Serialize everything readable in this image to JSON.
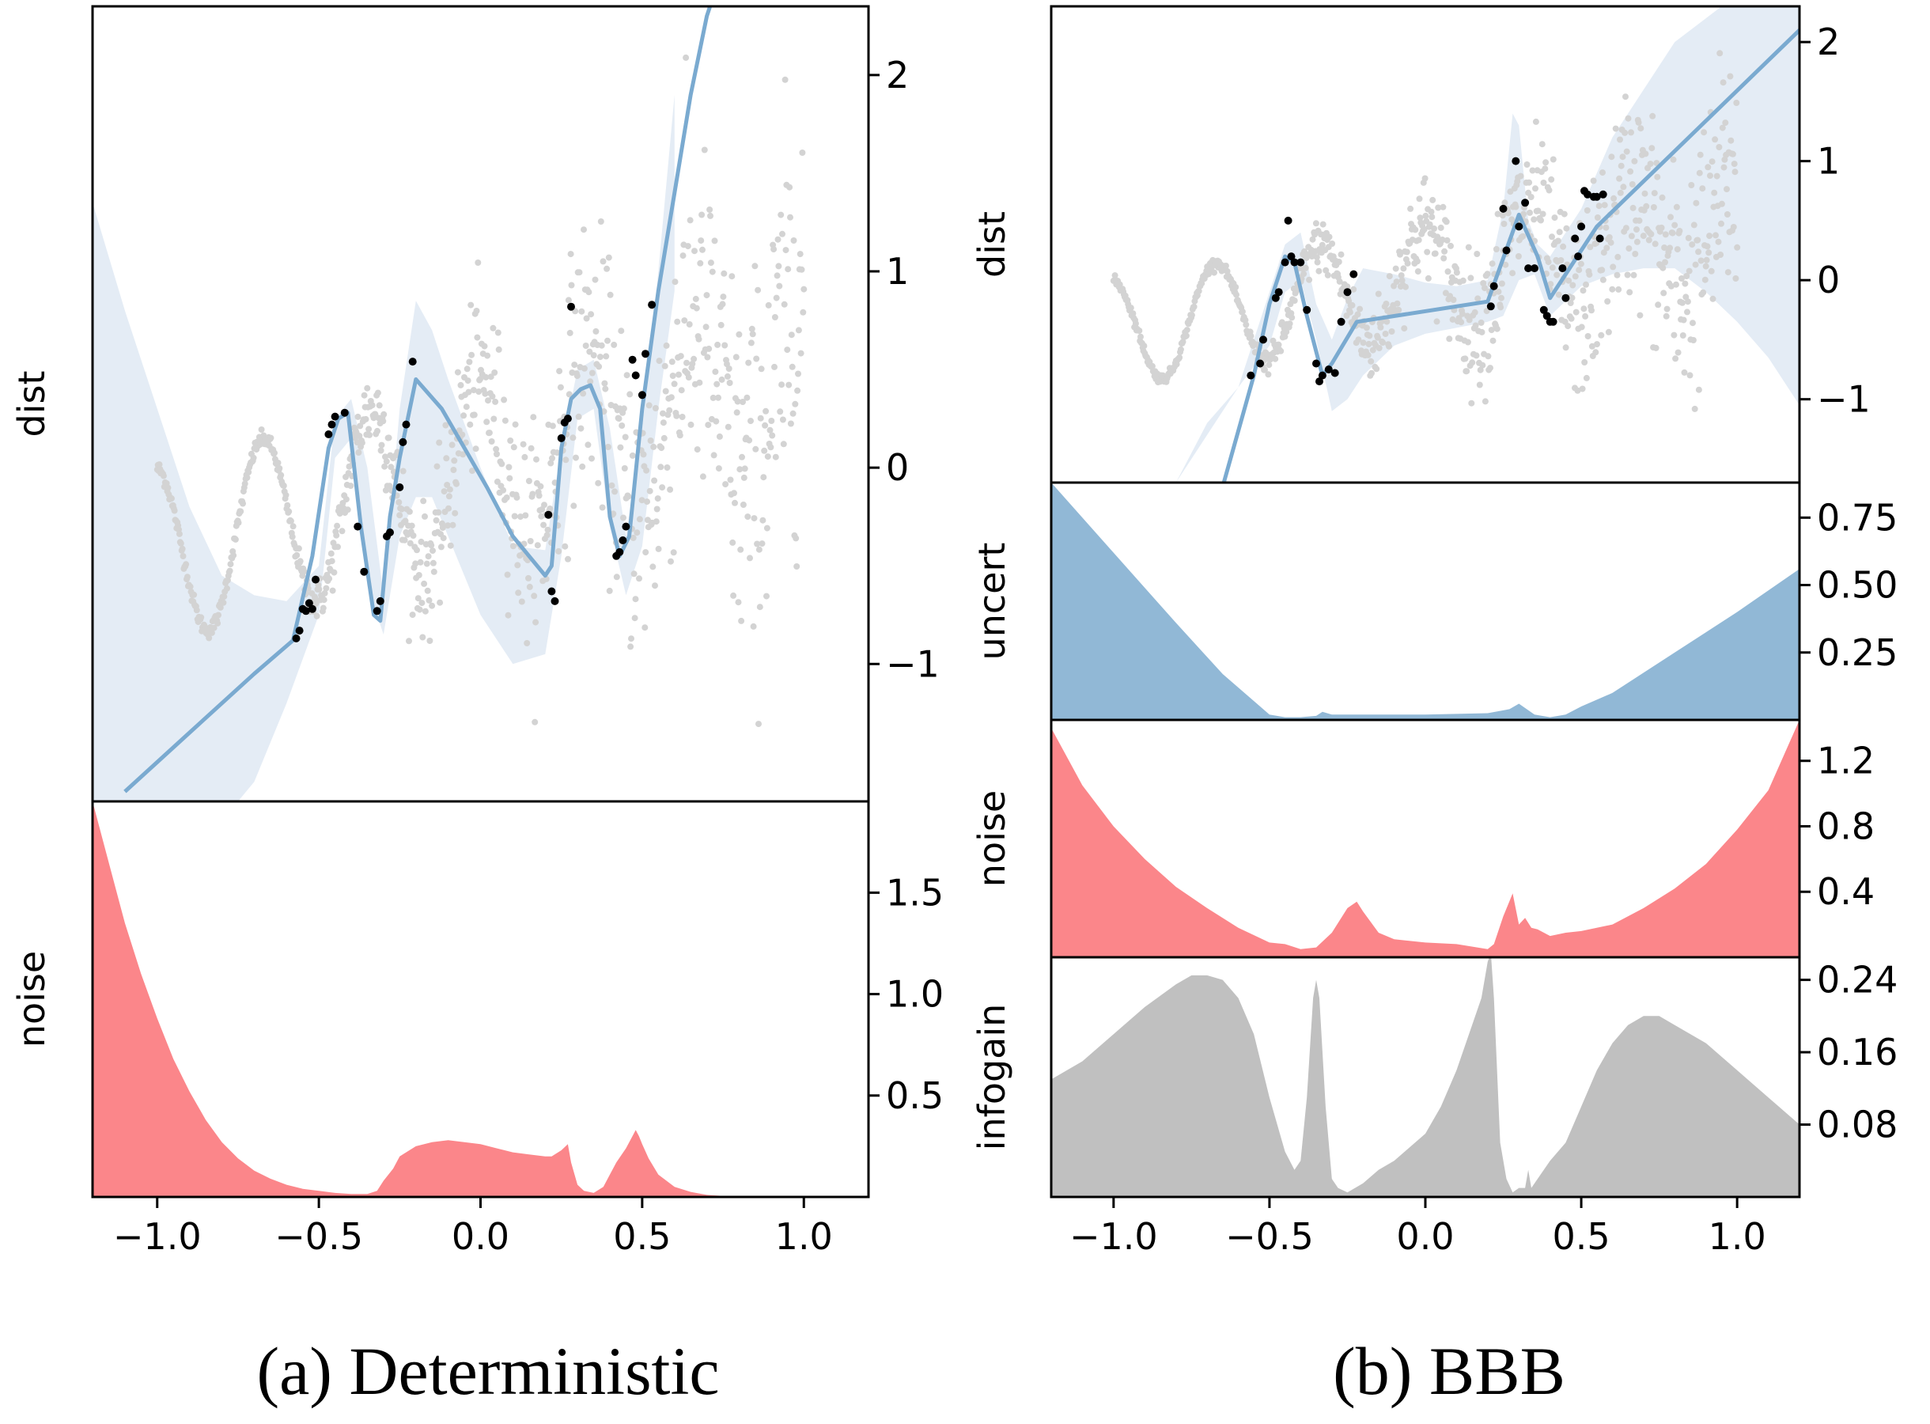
{
  "chart_data": [
    {
      "type": "line",
      "panel": "deterministic-dist",
      "ylabel": "dist",
      "xlim": [
        -1.2,
        1.2
      ],
      "ylim": [
        -1.7,
        2.35
      ],
      "yticks": [
        -1,
        0,
        1,
        2
      ],
      "ytick_labels": [
        "−1",
        "0",
        "1",
        "2"
      ],
      "colors": {
        "line": "#7aaad0",
        "band": "#e4ecf5",
        "train": "#000000",
        "context": "#d3d3d3"
      },
      "mean_line": {
        "x": [
          -1.1,
          -0.9,
          -0.7,
          -0.58,
          -0.52,
          -0.47,
          -0.44,
          -0.41,
          -0.37,
          -0.33,
          -0.31,
          -0.28,
          -0.25,
          -0.2,
          -0.12,
          -0.05,
          0.02,
          0.1,
          0.15,
          0.2,
          0.22,
          0.25,
          0.28,
          0.31,
          0.34,
          0.37,
          0.4,
          0.43,
          0.46,
          0.5,
          0.55,
          0.6,
          0.65,
          0.7,
          0.8
        ],
        "y": [
          -1.65,
          -1.35,
          -1.05,
          -0.88,
          -0.45,
          0.1,
          0.25,
          0.28,
          -0.3,
          -0.75,
          -0.78,
          -0.25,
          0.05,
          0.45,
          0.3,
          0.1,
          -0.1,
          -0.35,
          -0.45,
          -0.55,
          -0.5,
          0.1,
          0.35,
          0.4,
          0.42,
          0.3,
          -0.25,
          -0.45,
          -0.35,
          0.3,
          0.9,
          1.4,
          1.9,
          2.3,
          2.8
        ]
      },
      "band_upper": {
        "x": [
          -1.2,
          -1.1,
          -1.0,
          -0.9,
          -0.8,
          -0.7,
          -0.6,
          -0.5,
          -0.45,
          -0.4,
          -0.35,
          -0.3,
          -0.25,
          -0.2,
          -0.15,
          -0.1,
          0.0,
          0.1,
          0.2,
          0.25,
          0.3,
          0.35,
          0.4,
          0.45,
          0.5,
          0.55,
          0.6
        ],
        "y": [
          1.35,
          0.8,
          0.3,
          -0.2,
          -0.55,
          -0.65,
          -0.68,
          -0.5,
          0.25,
          0.35,
          0.0,
          -0.65,
          0.3,
          0.85,
          0.7,
          0.45,
          0.0,
          -0.4,
          -0.42,
          0.1,
          0.5,
          0.55,
          0.2,
          -0.35,
          0.2,
          1.0,
          1.9
        ]
      },
      "band_lower": {
        "x": [
          -1.2,
          -1.1,
          -1.0,
          -0.9,
          -0.8,
          -0.75,
          -0.7,
          -0.6,
          -0.5,
          -0.45,
          -0.4,
          -0.35,
          -0.3,
          -0.25,
          -0.2,
          -0.15,
          -0.1,
          0.0,
          0.1,
          0.2,
          0.25,
          0.3,
          0.35,
          0.4,
          0.45,
          0.5,
          0.55,
          0.6
        ],
        "y": [
          -1.7,
          -1.7,
          -1.7,
          -1.7,
          -1.7,
          -1.7,
          -1.6,
          -1.2,
          -0.75,
          0.05,
          0.15,
          -0.6,
          -0.85,
          -0.35,
          -0.15,
          -0.15,
          -0.35,
          -0.75,
          -1.0,
          -0.95,
          -0.45,
          0.25,
          0.3,
          -0.3,
          -0.65,
          -0.4,
          0.3,
          0.9
        ]
      },
      "train_points": {
        "x": [
          -0.57,
          -0.56,
          -0.55,
          -0.54,
          -0.53,
          -0.52,
          -0.51,
          -0.47,
          -0.46,
          -0.45,
          -0.42,
          -0.38,
          -0.36,
          -0.32,
          -0.31,
          -0.29,
          -0.28,
          -0.25,
          -0.24,
          -0.23,
          -0.21,
          0.21,
          0.22,
          0.23,
          0.25,
          0.26,
          0.27,
          0.28,
          0.42,
          0.43,
          0.44,
          0.45,
          0.47,
          0.48,
          0.5,
          0.51,
          0.53
        ],
        "y": [
          -0.87,
          -0.83,
          -0.72,
          -0.73,
          -0.69,
          -0.72,
          -0.57,
          0.17,
          0.22,
          0.26,
          0.28,
          -0.3,
          -0.53,
          -0.73,
          -0.68,
          -0.35,
          -0.33,
          -0.1,
          0.13,
          0.22,
          0.54,
          -0.24,
          -0.63,
          -0.68,
          0.15,
          0.23,
          0.25,
          0.82,
          -0.45,
          -0.43,
          -0.37,
          -0.3,
          0.55,
          0.47,
          0.37,
          0.58,
          0.83
        ]
      }
    },
    {
      "type": "area",
      "panel": "deterministic-noise",
      "ylabel": "noise",
      "xlim": [
        -1.2,
        1.2
      ],
      "ylim": [
        0.0,
        1.95
      ],
      "yticks": [
        0.5,
        1.0,
        1.5
      ],
      "ytick_labels": [
        "0.5",
        "1.0",
        "1.5"
      ],
      "color": "#fb868a",
      "x": [
        -1.2,
        -1.15,
        -1.1,
        -1.05,
        -1.0,
        -0.95,
        -0.9,
        -0.85,
        -0.8,
        -0.75,
        -0.7,
        -0.65,
        -0.6,
        -0.55,
        -0.5,
        -0.45,
        -0.4,
        -0.35,
        -0.32,
        -0.3,
        -0.27,
        -0.25,
        -0.22,
        -0.2,
        -0.15,
        -0.1,
        -0.05,
        0.0,
        0.05,
        0.1,
        0.15,
        0.2,
        0.22,
        0.25,
        0.27,
        0.28,
        0.3,
        0.32,
        0.35,
        0.38,
        0.4,
        0.42,
        0.45,
        0.47,
        0.48,
        0.49,
        0.5,
        0.52,
        0.55,
        0.6,
        0.65,
        0.7,
        0.75,
        0.8,
        0.9,
        1.0,
        1.2
      ],
      "y": [
        1.95,
        1.65,
        1.35,
        1.1,
        0.88,
        0.68,
        0.52,
        0.38,
        0.27,
        0.19,
        0.13,
        0.09,
        0.06,
        0.04,
        0.03,
        0.02,
        0.015,
        0.015,
        0.03,
        0.08,
        0.14,
        0.2,
        0.23,
        0.25,
        0.27,
        0.28,
        0.27,
        0.26,
        0.24,
        0.22,
        0.21,
        0.2,
        0.2,
        0.23,
        0.26,
        0.17,
        0.06,
        0.03,
        0.02,
        0.05,
        0.11,
        0.17,
        0.24,
        0.3,
        0.33,
        0.3,
        0.26,
        0.19,
        0.11,
        0.05,
        0.025,
        0.01,
        0.005,
        0.0,
        0.0,
        0.0,
        0.0
      ]
    },
    {
      "type": "line",
      "panel": "bbb-dist",
      "ylabel": "dist",
      "xlim": [
        -1.2,
        1.2
      ],
      "ylim": [
        -1.7,
        2.3
      ],
      "yticks": [
        -1,
        0,
        1,
        2
      ],
      "ytick_labels": [
        "−1",
        "0",
        "1",
        "2"
      ],
      "colors": {
        "line": "#7aaad0",
        "band": "#e4ecf5",
        "train": "#000000",
        "context": "#d3d3d3"
      },
      "mean_line": {
        "x": [
          -0.7,
          -0.55,
          -0.5,
          -0.45,
          -0.42,
          -0.38,
          -0.33,
          -0.3,
          -0.22,
          0.2,
          0.3,
          0.36,
          0.4,
          0.55,
          1.2
        ],
        "y": [
          -2.2,
          -0.8,
          -0.2,
          0.2,
          0.15,
          -0.3,
          -0.8,
          -0.7,
          -0.35,
          -0.18,
          0.55,
          0.2,
          -0.15,
          0.45,
          2.1
        ]
      },
      "band_upper": {
        "x": [
          -0.6,
          -0.5,
          -0.45,
          -0.4,
          -0.35,
          -0.3,
          -0.25,
          -0.2,
          -0.1,
          0.0,
          0.1,
          0.2,
          0.25,
          0.28,
          0.3,
          0.33,
          0.36,
          0.4,
          0.5,
          0.6,
          0.8,
          1.0,
          1.2
        ],
        "y": [
          -0.9,
          -0.1,
          0.3,
          0.4,
          -0.2,
          -0.5,
          -0.15,
          0.1,
          0.05,
          -0.02,
          -0.05,
          0.0,
          0.6,
          1.4,
          1.3,
          0.5,
          0.3,
          0.2,
          0.6,
          1.2,
          2.0,
          2.4,
          2.7
        ]
      },
      "band_lower": {
        "x": [
          -0.8,
          -0.7,
          -0.6,
          -0.5,
          -0.45,
          -0.4,
          -0.35,
          -0.3,
          -0.25,
          -0.2,
          -0.1,
          0.0,
          0.1,
          0.2,
          0.25,
          0.3,
          0.35,
          0.4,
          0.5,
          0.6,
          0.7,
          0.8,
          0.9,
          1.0,
          1.1,
          1.2
        ],
        "y": [
          -1.7,
          -1.2,
          -0.9,
          -0.55,
          -0.1,
          0.0,
          -0.5,
          -1.1,
          -1.0,
          -0.8,
          -0.55,
          -0.45,
          -0.4,
          -0.35,
          -0.3,
          0.0,
          0.05,
          -0.3,
          -0.05,
          0.05,
          0.1,
          0.1,
          -0.1,
          -0.35,
          -0.65,
          -1.05
        ]
      },
      "train_points": {
        "x": [
          -0.56,
          -0.53,
          -0.52,
          -0.48,
          -0.47,
          -0.45,
          -0.44,
          -0.43,
          -0.42,
          -0.4,
          -0.38,
          -0.35,
          -0.34,
          -0.33,
          -0.31,
          -0.29,
          -0.27,
          -0.25,
          -0.23,
          0.21,
          0.22,
          0.25,
          0.26,
          0.29,
          0.3,
          0.32,
          0.33,
          0.35,
          0.38,
          0.39,
          0.4,
          0.41,
          0.44,
          0.45,
          0.48,
          0.49,
          0.5,
          0.51,
          0.52,
          0.54,
          0.55,
          0.56,
          0.57
        ],
        "y": [
          -0.8,
          -0.7,
          -0.5,
          -0.15,
          -0.1,
          0.15,
          0.5,
          0.2,
          0.15,
          0.15,
          -0.25,
          -0.7,
          -0.85,
          -0.8,
          -0.75,
          -0.78,
          -0.35,
          -0.1,
          0.05,
          -0.22,
          -0.05,
          0.6,
          0.25,
          1.0,
          0.45,
          0.65,
          0.1,
          0.1,
          -0.25,
          -0.3,
          -0.35,
          -0.35,
          0.1,
          -0.15,
          0.35,
          0.2,
          0.45,
          0.75,
          0.72,
          0.7,
          0.7,
          0.35,
          0.72
        ]
      }
    },
    {
      "type": "area",
      "panel": "bbb-uncert",
      "ylabel": "uncert",
      "xlim": [
        -1.2,
        1.2
      ],
      "ylim": [
        0.0,
        0.88
      ],
      "yticks": [
        0.25,
        0.5,
        0.75
      ],
      "ytick_labels": [
        "0.25",
        "0.50",
        "0.75"
      ],
      "color": "#91b8d6",
      "x": [
        -1.2,
        -1.0,
        -0.8,
        -0.65,
        -0.5,
        -0.45,
        -0.4,
        -0.35,
        -0.33,
        -0.3,
        -0.2,
        0.0,
        0.2,
        0.27,
        0.3,
        0.35,
        0.4,
        0.45,
        0.5,
        0.6,
        0.8,
        1.0,
        1.2
      ],
      "y": [
        0.88,
        0.62,
        0.36,
        0.17,
        0.02,
        0.01,
        0.01,
        0.015,
        0.03,
        0.02,
        0.02,
        0.02,
        0.025,
        0.04,
        0.06,
        0.02,
        0.01,
        0.02,
        0.05,
        0.1,
        0.25,
        0.4,
        0.56
      ]
    },
    {
      "type": "area",
      "panel": "bbb-noise",
      "ylabel": "noise",
      "xlim": [
        -1.2,
        1.2
      ],
      "ylim": [
        0.0,
        1.45
      ],
      "yticks": [
        0.4,
        0.8,
        1.2
      ],
      "ytick_labels": [
        "0.4",
        "0.8",
        "1.2"
      ],
      "color": "#fb868a",
      "x": [
        -1.2,
        -1.1,
        -1.0,
        -0.9,
        -0.8,
        -0.7,
        -0.6,
        -0.5,
        -0.45,
        -0.4,
        -0.35,
        -0.3,
        -0.25,
        -0.22,
        -0.2,
        -0.15,
        -0.1,
        0.0,
        0.1,
        0.2,
        0.22,
        0.25,
        0.28,
        0.3,
        0.32,
        0.34,
        0.36,
        0.4,
        0.45,
        0.5,
        0.6,
        0.7,
        0.8,
        0.9,
        1.0,
        1.1,
        1.2
      ],
      "y": [
        1.4,
        1.05,
        0.8,
        0.6,
        0.43,
        0.3,
        0.18,
        0.09,
        0.08,
        0.05,
        0.06,
        0.15,
        0.3,
        0.34,
        0.28,
        0.15,
        0.11,
        0.09,
        0.08,
        0.05,
        0.08,
        0.25,
        0.39,
        0.2,
        0.24,
        0.18,
        0.17,
        0.13,
        0.15,
        0.16,
        0.2,
        0.3,
        0.42,
        0.57,
        0.78,
        1.02,
        1.45
      ]
    },
    {
      "type": "area",
      "panel": "bbb-infogain",
      "ylabel": "infogain",
      "xlim": [
        -1.2,
        1.2
      ],
      "ylim": [
        0.0,
        0.265
      ],
      "yticks": [
        0.08,
        0.16,
        0.24
      ],
      "ytick_labels": [
        "0.08",
        "0.16",
        "0.24"
      ],
      "color": "#c0c0c0",
      "x": [
        -1.2,
        -1.1,
        -1.0,
        -0.9,
        -0.8,
        -0.75,
        -0.7,
        -0.65,
        -0.6,
        -0.55,
        -0.5,
        -0.45,
        -0.42,
        -0.4,
        -0.38,
        -0.36,
        -0.35,
        -0.34,
        -0.32,
        -0.3,
        -0.28,
        -0.25,
        -0.2,
        -0.15,
        -0.1,
        -0.05,
        0.0,
        0.05,
        0.1,
        0.15,
        0.18,
        0.2,
        0.21,
        0.22,
        0.24,
        0.26,
        0.28,
        0.3,
        0.32,
        0.33,
        0.34,
        0.36,
        0.4,
        0.45,
        0.5,
        0.55,
        0.6,
        0.65,
        0.7,
        0.75,
        0.8,
        0.9,
        1.0,
        1.1,
        1.2
      ],
      "y": [
        0.13,
        0.15,
        0.18,
        0.21,
        0.235,
        0.245,
        0.245,
        0.24,
        0.22,
        0.18,
        0.11,
        0.05,
        0.03,
        0.04,
        0.11,
        0.22,
        0.24,
        0.22,
        0.1,
        0.02,
        0.01,
        0.005,
        0.015,
        0.03,
        0.04,
        0.055,
        0.07,
        0.1,
        0.14,
        0.19,
        0.22,
        0.26,
        0.27,
        0.22,
        0.06,
        0.02,
        0.005,
        0.01,
        0.01,
        0.03,
        0.01,
        0.02,
        0.04,
        0.06,
        0.1,
        0.14,
        0.17,
        0.19,
        0.2,
        0.2,
        0.19,
        0.17,
        0.14,
        0.11,
        0.08
      ]
    }
  ],
  "xaxis": {
    "ticks": [
      -1.0,
      -0.5,
      0.0,
      0.5,
      1.0
    ],
    "tick_labels": [
      "−1.0",
      "−0.5",
      "0.0",
      "0.5",
      "1.0"
    ]
  },
  "captions": {
    "left": "(a) Deterministic",
    "right": "(b) BBB"
  }
}
